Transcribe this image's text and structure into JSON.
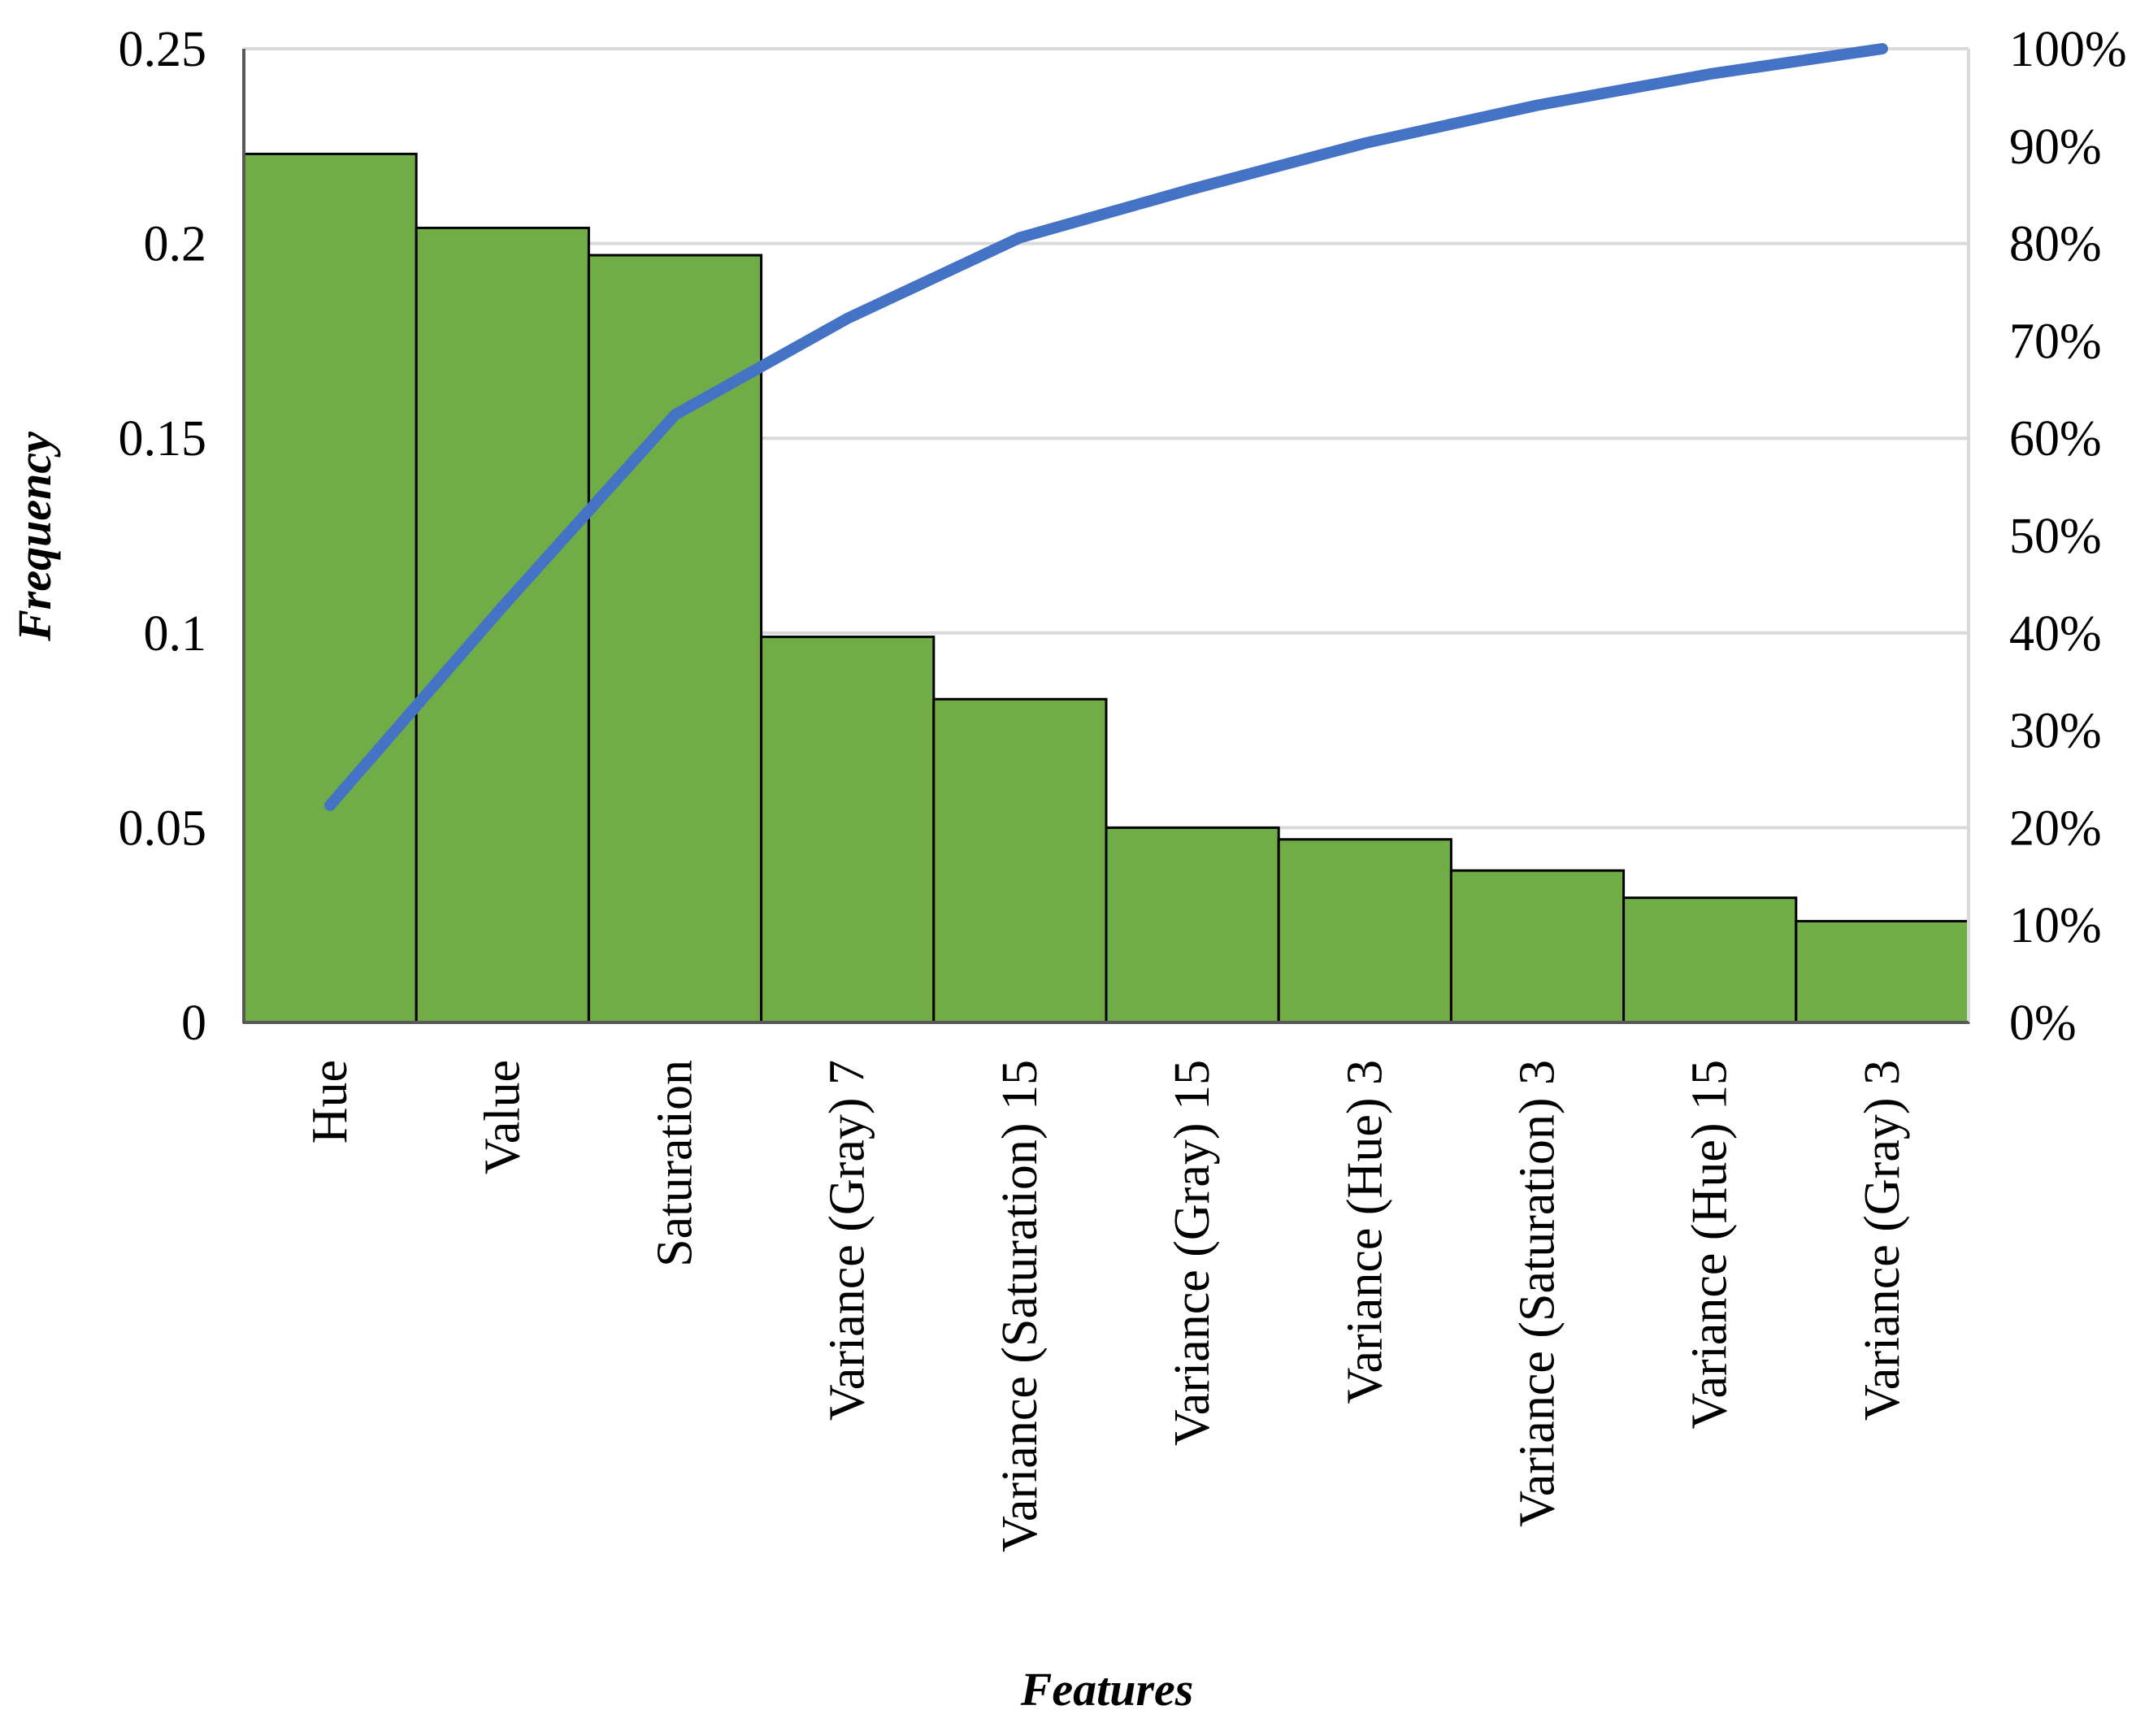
{
  "chart_data": {
    "type": "bar",
    "title": "",
    "xlabel": "Features",
    "ylabel": "Frequency",
    "categories": [
      "Hue",
      "Value",
      "Saturation",
      "Variance (Gray) 7",
      "Variance (Saturation) 15",
      "Variance (Gray) 15",
      "Variance (Hue) 3",
      "Variance (Saturation) 3",
      "Variance (Hue) 15",
      "Variance (Gray) 3"
    ],
    "series": [
      {
        "type": "bar",
        "axis": "left",
        "values": [
          0.223,
          0.204,
          0.197,
          0.099,
          0.083,
          0.05,
          0.047,
          0.039,
          0.032,
          0.026
        ]
      },
      {
        "type": "line",
        "axis": "right",
        "values": [
          0.223,
          0.427,
          0.624,
          0.723,
          0.806,
          0.856,
          0.903,
          0.942,
          0.974,
          1.0
        ]
      }
    ],
    "ylim": [
      0,
      0.25
    ],
    "y_ticks": [
      "0",
      "0.05",
      "0.1",
      "0.15",
      "0.2",
      "0.25"
    ],
    "y2lim": [
      0,
      1.0
    ],
    "y2_ticks": [
      "0%",
      "10%",
      "20%",
      "30%",
      "40%",
      "50%",
      "60%",
      "70%",
      "80%",
      "90%",
      "100%"
    ],
    "grid": true,
    "colors": {
      "bar_fill": "#70AD47",
      "bar_stroke": "#000000",
      "line": "#4472C4",
      "grid": "#D9D9D9"
    }
  }
}
